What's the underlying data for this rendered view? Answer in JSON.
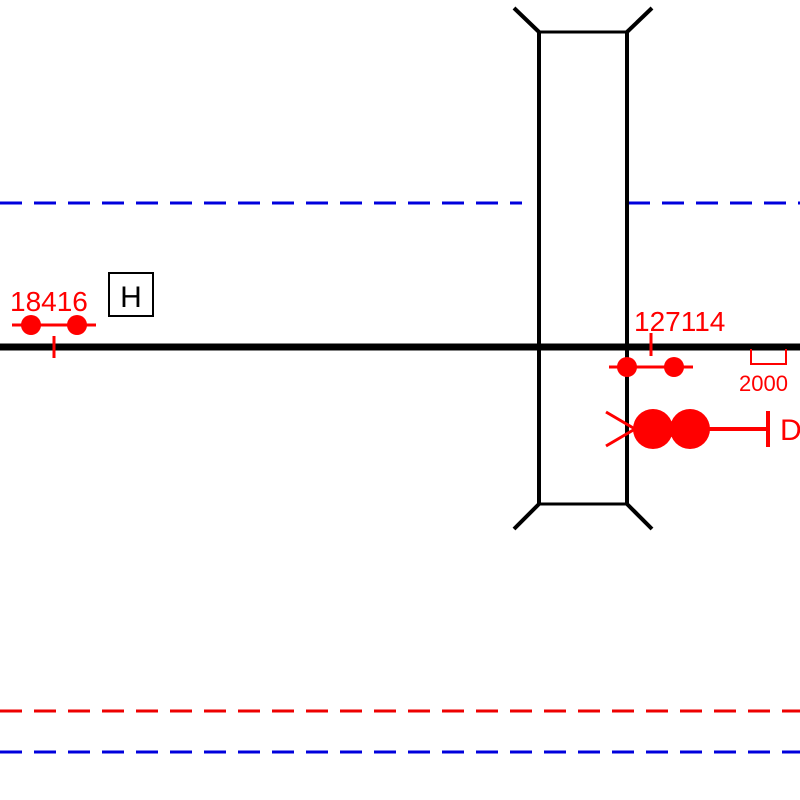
{
  "colors": {
    "track": "#000000",
    "signal": "#ff0000",
    "boundary_blue": "#0000dd",
    "boundary_red": "#ee0000",
    "background": "#ffffff"
  },
  "signals": {
    "left_id": "18416",
    "right_id": "127114",
    "main_signal_suffix": "D"
  },
  "board": {
    "label": "H"
  },
  "speed_marker": {
    "value": "2000"
  }
}
